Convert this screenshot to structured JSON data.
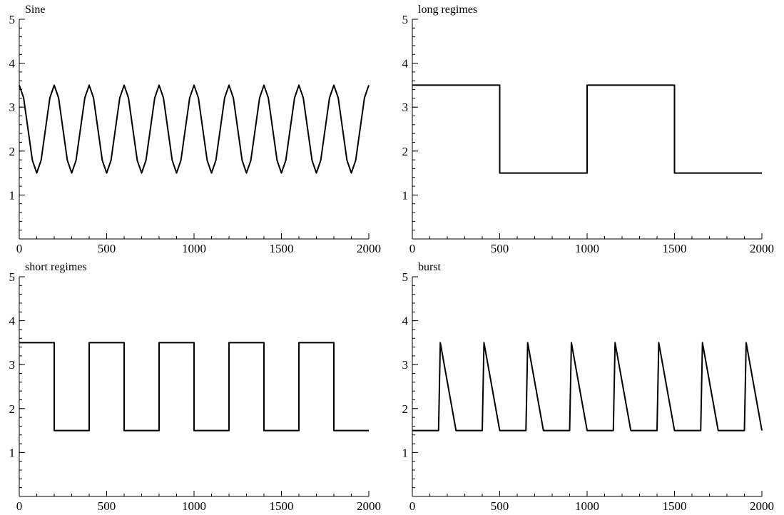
{
  "chart_data": [
    {
      "type": "line",
      "title": "Sine",
      "xlim": [
        0,
        2000
      ],
      "ylim": [
        0,
        5
      ],
      "xticks": [
        0,
        500,
        1000,
        1500,
        2000
      ],
      "yticks": [
        1,
        2,
        3,
        4,
        5
      ],
      "x_minor_step": 100,
      "y_minor_step": 0.2,
      "grid": false,
      "series": [
        {
          "color": "#000000",
          "x": [
            0,
            25,
            50,
            75,
            100,
            125,
            150,
            175,
            200,
            225,
            250,
            275,
            300,
            325,
            350,
            375,
            400,
            425,
            450,
            475,
            500,
            525,
            550,
            575,
            600,
            625,
            650,
            675,
            700,
            725,
            750,
            775,
            800,
            825,
            850,
            875,
            900,
            925,
            950,
            975,
            1000,
            1025,
            1050,
            1075,
            1100,
            1125,
            1150,
            1175,
            1200,
            1225,
            1250,
            1275,
            1300,
            1325,
            1350,
            1375,
            1400,
            1425,
            1450,
            1475,
            1500,
            1525,
            1550,
            1575,
            1600,
            1625,
            1650,
            1675,
            1700,
            1725,
            1750,
            1775,
            1800,
            1825,
            1850,
            1875,
            1900,
            1925,
            1950,
            1975,
            2000
          ],
          "y": [
            3.5,
            3.21,
            2.5,
            1.79,
            1.5,
            1.79,
            2.5,
            3.21,
            3.5,
            3.21,
            2.5,
            1.79,
            1.5,
            1.79,
            2.5,
            3.21,
            3.5,
            3.21,
            2.5,
            1.79,
            1.5,
            1.79,
            2.5,
            3.21,
            3.5,
            3.21,
            2.5,
            1.79,
            1.5,
            1.79,
            2.5,
            3.21,
            3.5,
            3.21,
            2.5,
            1.79,
            1.5,
            1.79,
            2.5,
            3.21,
            3.5,
            3.21,
            2.5,
            1.79,
            1.5,
            1.79,
            2.5,
            3.21,
            3.5,
            3.21,
            2.5,
            1.79,
            1.5,
            1.79,
            2.5,
            3.21,
            3.5,
            3.21,
            2.5,
            1.79,
            1.5,
            1.79,
            2.5,
            3.21,
            3.5,
            3.21,
            2.5,
            1.79,
            1.5,
            1.79,
            2.5,
            3.21,
            3.5,
            3.21,
            2.5,
            1.79,
            1.5,
            1.79,
            2.5,
            3.21,
            3.5
          ]
        }
      ]
    },
    {
      "type": "line",
      "title": "long regimes",
      "xlim": [
        0,
        2000
      ],
      "ylim": [
        0,
        5
      ],
      "xticks": [
        0,
        500,
        1000,
        1500,
        2000
      ],
      "yticks": [
        1,
        2,
        3,
        4,
        5
      ],
      "x_minor_step": 100,
      "y_minor_step": 0.2,
      "grid": false,
      "series": [
        {
          "color": "#000000",
          "x": [
            0,
            500,
            500,
            1000,
            1000,
            1500,
            1500,
            2000
          ],
          "y": [
            3.5,
            3.5,
            1.5,
            1.5,
            3.5,
            3.5,
            1.5,
            1.5
          ]
        }
      ]
    },
    {
      "type": "line",
      "title": "short regimes",
      "xlim": [
        0,
        2000
      ],
      "ylim": [
        0,
        5
      ],
      "xticks": [
        0,
        500,
        1000,
        1500,
        2000
      ],
      "yticks": [
        1,
        2,
        3,
        4,
        5
      ],
      "x_minor_step": 100,
      "y_minor_step": 0.2,
      "grid": false,
      "series": [
        {
          "color": "#000000",
          "x": [
            0,
            200,
            200,
            400,
            400,
            600,
            600,
            800,
            800,
            1000,
            1000,
            1200,
            1200,
            1400,
            1400,
            1600,
            1600,
            1800,
            1800,
            2000
          ],
          "y": [
            3.5,
            3.5,
            1.5,
            1.5,
            3.5,
            3.5,
            1.5,
            1.5,
            3.5,
            3.5,
            1.5,
            1.5,
            3.5,
            3.5,
            1.5,
            1.5,
            3.5,
            3.5,
            1.5,
            1.5
          ]
        }
      ]
    },
    {
      "type": "line",
      "title": "burst",
      "xlim": [
        0,
        2000
      ],
      "ylim": [
        0,
        5
      ],
      "xticks": [
        0,
        500,
        1000,
        1500,
        2000
      ],
      "yticks": [
        1,
        2,
        3,
        4,
        5
      ],
      "x_minor_step": 100,
      "y_minor_step": 0.2,
      "grid": false,
      "series": [
        {
          "color": "#000000",
          "x": [
            0,
            150,
            160,
            250,
            400,
            410,
            500,
            650,
            660,
            750,
            900,
            910,
            1000,
            1150,
            1160,
            1250,
            1400,
            1410,
            1500,
            1650,
            1660,
            1750,
            1900,
            1910,
            2000
          ],
          "y": [
            1.5,
            1.5,
            3.5,
            1.5,
            1.5,
            3.5,
            1.5,
            1.5,
            3.5,
            1.5,
            1.5,
            3.5,
            1.5,
            1.5,
            3.5,
            1.5,
            1.5,
            3.5,
            1.5,
            1.5,
            3.5,
            1.5,
            1.5,
            3.5,
            1.5
          ]
        }
      ]
    }
  ]
}
